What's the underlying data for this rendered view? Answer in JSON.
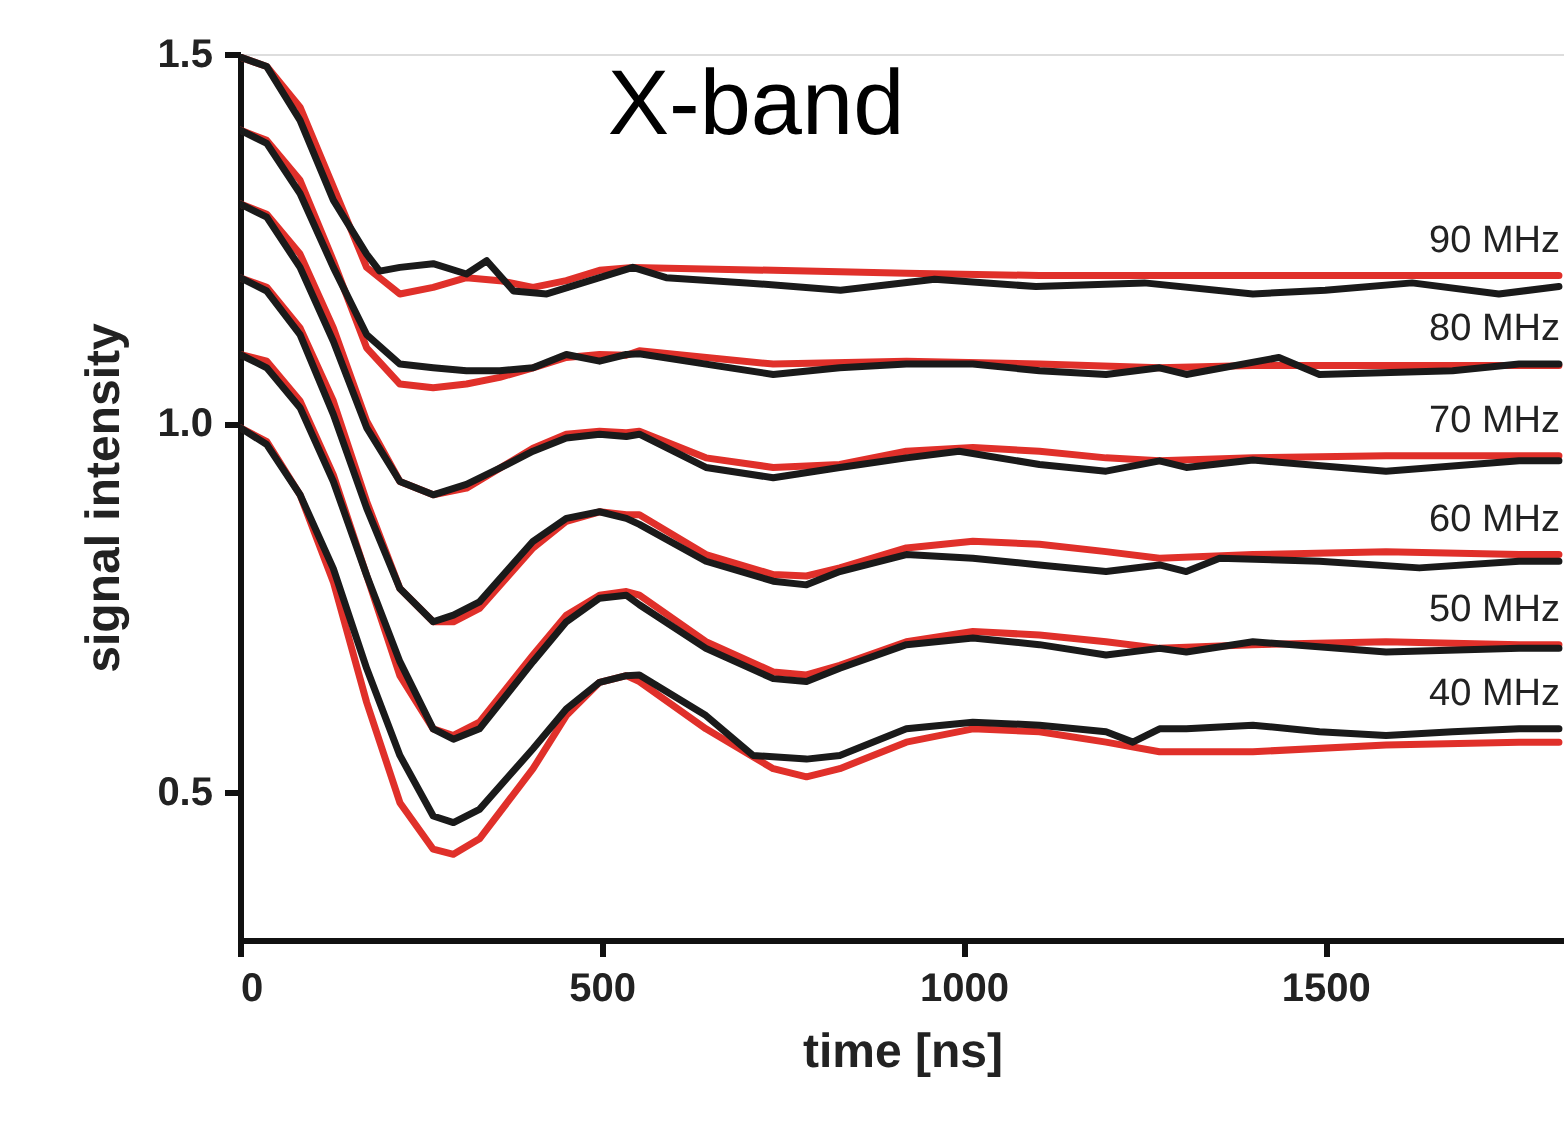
{
  "chart_data": {
    "type": "line",
    "title": "X-band",
    "xlabel": "time [ns]",
    "ylabel": "signal intensity",
    "xlim": [
      0,
      1830
    ],
    "xticks": [
      0,
      500,
      1000,
      1500
    ],
    "ylim": [
      0.3,
      1.5
    ],
    "yticks": [
      {
        "value": 0.5,
        "label": "0.5"
      },
      {
        "value": 1.0,
        "label": "1.0"
      },
      {
        "value": 1.5,
        "label": "1.5"
      }
    ],
    "grid": false,
    "annotations": [
      "90 MHz",
      "80 MHz",
      "70 MHz",
      "60 MHz",
      "50 MHz",
      "40 MHz"
    ],
    "series": [
      {
        "color": "#e0302a",
        "x": [
          0,
          37,
          83,
          129,
          175,
          221,
          267,
          295,
          331,
          405,
          451,
          497,
          534,
          552,
          644,
          737,
          783,
          829,
          921,
          1013,
          1105,
          1197,
          1271,
          1400,
          1584,
          1768,
          1823
        ],
        "values": [
          0.994,
          0.975,
          0.903,
          0.785,
          0.622,
          0.486,
          0.423,
          0.416,
          0.437,
          0.532,
          0.604,
          0.649,
          0.658,
          0.65,
          0.586,
          0.532,
          0.521,
          0.532,
          0.568,
          0.586,
          0.582,
          0.568,
          0.555,
          0.555,
          0.564,
          0.568,
          0.568
        ]
      },
      {
        "color": "#1a1a1a",
        "x": [
          0,
          37,
          83,
          129,
          175,
          221,
          267,
          295,
          331,
          405,
          451,
          497,
          534,
          552,
          644,
          709,
          783,
          829,
          921,
          1013,
          1105,
          1197,
          1234,
          1271,
          1308,
          1400,
          1492,
          1584,
          1676,
          1768,
          1823
        ],
        "values": [
          0.994,
          0.971,
          0.903,
          0.803,
          0.668,
          0.55,
          0.468,
          0.459,
          0.477,
          0.559,
          0.613,
          0.649,
          0.658,
          0.659,
          0.604,
          0.55,
          0.545,
          0.55,
          0.586,
          0.595,
          0.591,
          0.582,
          0.568,
          0.586,
          0.586,
          0.591,
          0.582,
          0.577,
          0.582,
          0.586,
          0.586
        ]
      },
      {
        "color": "#e0302a",
        "x": [
          0,
          37,
          83,
          129,
          175,
          221,
          267,
          295,
          331,
          405,
          451,
          497,
          534,
          552,
          644,
          737,
          783,
          829,
          921,
          1013,
          1105,
          1197,
          1271,
          1400,
          1584,
          1768,
          1823
        ],
        "values": [
          1.093,
          1.084,
          1.03,
          0.93,
          0.794,
          0.658,
          0.586,
          0.577,
          0.595,
          0.686,
          0.74,
          0.767,
          0.772,
          0.767,
          0.704,
          0.663,
          0.659,
          0.672,
          0.704,
          0.718,
          0.713,
          0.704,
          0.695,
          0.7,
          0.704,
          0.7,
          0.7
        ]
      },
      {
        "color": "#1a1a1a",
        "x": [
          0,
          37,
          83,
          129,
          175,
          221,
          267,
          295,
          331,
          405,
          451,
          497,
          534,
          552,
          644,
          737,
          783,
          829,
          921,
          1013,
          1105,
          1197,
          1271,
          1308,
          1400,
          1584,
          1768,
          1823
        ],
        "values": [
          1.093,
          1.075,
          1.021,
          0.921,
          0.794,
          0.677,
          0.586,
          0.572,
          0.586,
          0.677,
          0.731,
          0.763,
          0.767,
          0.754,
          0.695,
          0.654,
          0.65,
          0.668,
          0.7,
          0.709,
          0.7,
          0.686,
          0.695,
          0.69,
          0.704,
          0.69,
          0.695,
          0.695
        ]
      },
      {
        "color": "#e0302a",
        "x": [
          0,
          37,
          83,
          129,
          175,
          221,
          267,
          295,
          331,
          405,
          451,
          497,
          534,
          552,
          644,
          737,
          783,
          829,
          921,
          1013,
          1105,
          1197,
          1271,
          1400,
          1584,
          1768,
          1823
        ],
        "values": [
          1.197,
          1.184,
          1.129,
          1.03,
          0.894,
          0.776,
          0.731,
          0.731,
          0.749,
          0.831,
          0.867,
          0.88,
          0.876,
          0.876,
          0.822,
          0.795,
          0.793,
          0.804,
          0.831,
          0.84,
          0.836,
          0.826,
          0.817,
          0.822,
          0.826,
          0.822,
          0.822
        ]
      },
      {
        "color": "#1a1a1a",
        "x": [
          0,
          37,
          83,
          129,
          175,
          221,
          267,
          295,
          331,
          405,
          451,
          497,
          534,
          552,
          644,
          737,
          783,
          829,
          921,
          1013,
          1105,
          1197,
          1271,
          1308,
          1354,
          1492,
          1630,
          1768,
          1823
        ],
        "values": [
          1.197,
          1.179,
          1.12,
          1.012,
          0.885,
          0.776,
          0.731,
          0.74,
          0.758,
          0.84,
          0.871,
          0.88,
          0.871,
          0.863,
          0.813,
          0.786,
          0.781,
          0.799,
          0.822,
          0.817,
          0.808,
          0.799,
          0.808,
          0.799,
          0.817,
          0.813,
          0.804,
          0.813,
          0.813
        ]
      },
      {
        "color": "#e0302a",
        "x": [
          0,
          37,
          83,
          129,
          175,
          221,
          267,
          313,
          359,
          405,
          451,
          497,
          534,
          552,
          644,
          737,
          829,
          921,
          1013,
          1105,
          1197,
          1271,
          1400,
          1584,
          1768,
          1823
        ],
        "values": [
          1.297,
          1.283,
          1.229,
          1.129,
          1.003,
          0.921,
          0.903,
          0.912,
          0.939,
          0.966,
          0.985,
          0.989,
          0.987,
          0.989,
          0.953,
          0.94,
          0.944,
          0.962,
          0.967,
          0.962,
          0.953,
          0.949,
          0.953,
          0.956,
          0.956,
          0.956
        ]
      },
      {
        "color": "#1a1a1a",
        "x": [
          0,
          37,
          83,
          129,
          175,
          221,
          267,
          313,
          359,
          405,
          451,
          497,
          534,
          552,
          644,
          737,
          829,
          921,
          994,
          1105,
          1197,
          1271,
          1308,
          1400,
          1584,
          1768,
          1823
        ],
        "values": [
          1.297,
          1.279,
          1.211,
          1.111,
          0.994,
          0.921,
          0.903,
          0.917,
          0.939,
          0.962,
          0.98,
          0.985,
          0.982,
          0.985,
          0.94,
          0.926,
          0.94,
          0.953,
          0.962,
          0.944,
          0.935,
          0.949,
          0.94,
          0.95,
          0.935,
          0.949,
          0.949
        ]
      },
      {
        "color": "#e0302a",
        "x": [
          0,
          37,
          83,
          129,
          175,
          221,
          267,
          313,
          359,
          405,
          451,
          497,
          534,
          552,
          737,
          921,
          1105,
          1271,
          1400,
          1584,
          1768,
          1823
        ],
        "values": [
          1.397,
          1.383,
          1.329,
          1.22,
          1.102,
          1.053,
          1.048,
          1.053,
          1.062,
          1.075,
          1.089,
          1.093,
          1.092,
          1.098,
          1.08,
          1.084,
          1.08,
          1.075,
          1.078,
          1.078,
          1.078,
          1.078
        ]
      },
      {
        "color": "#1a1a1a",
        "x": [
          0,
          37,
          83,
          129,
          175,
          221,
          267,
          313,
          359,
          405,
          451,
          497,
          534,
          552,
          644,
          737,
          829,
          921,
          1013,
          1105,
          1197,
          1271,
          1308,
          1436,
          1492,
          1676,
          1768,
          1823
        ],
        "values": [
          1.397,
          1.379,
          1.311,
          1.211,
          1.12,
          1.08,
          1.075,
          1.071,
          1.071,
          1.075,
          1.093,
          1.084,
          1.093,
          1.094,
          1.08,
          1.066,
          1.075,
          1.08,
          1.08,
          1.071,
          1.066,
          1.075,
          1.066,
          1.089,
          1.066,
          1.071,
          1.08,
          1.08
        ]
      },
      {
        "color": "#e0302a",
        "x": [
          0,
          37,
          83,
          129,
          175,
          221,
          267,
          313,
          359,
          405,
          451,
          497,
          543,
          737,
          921,
          1105,
          1271,
          1400,
          1584,
          1768,
          1823
        ],
        "values": [
          1.496,
          1.483,
          1.428,
          1.32,
          1.211,
          1.175,
          1.184,
          1.197,
          1.193,
          1.184,
          1.193,
          1.207,
          1.211,
          1.207,
          1.203,
          1.2,
          1.2,
          1.2,
          1.2,
          1.2,
          1.2
        ]
      },
      {
        "color": "#1a1a1a",
        "x": [
          0,
          37,
          83,
          129,
          175,
          193,
          221,
          267,
          313,
          341,
          378,
          424,
          497,
          543,
          589,
          700,
          830,
          960,
          1100,
          1250,
          1400,
          1500,
          1620,
          1740,
          1823
        ],
        "values": [
          1.496,
          1.483,
          1.41,
          1.302,
          1.229,
          1.206,
          1.211,
          1.216,
          1.202,
          1.22,
          1.179,
          1.175,
          1.197,
          1.211,
          1.197,
          1.19,
          1.18,
          1.195,
          1.185,
          1.19,
          1.175,
          1.18,
          1.19,
          1.175,
          1.185
        ]
      }
    ]
  }
}
